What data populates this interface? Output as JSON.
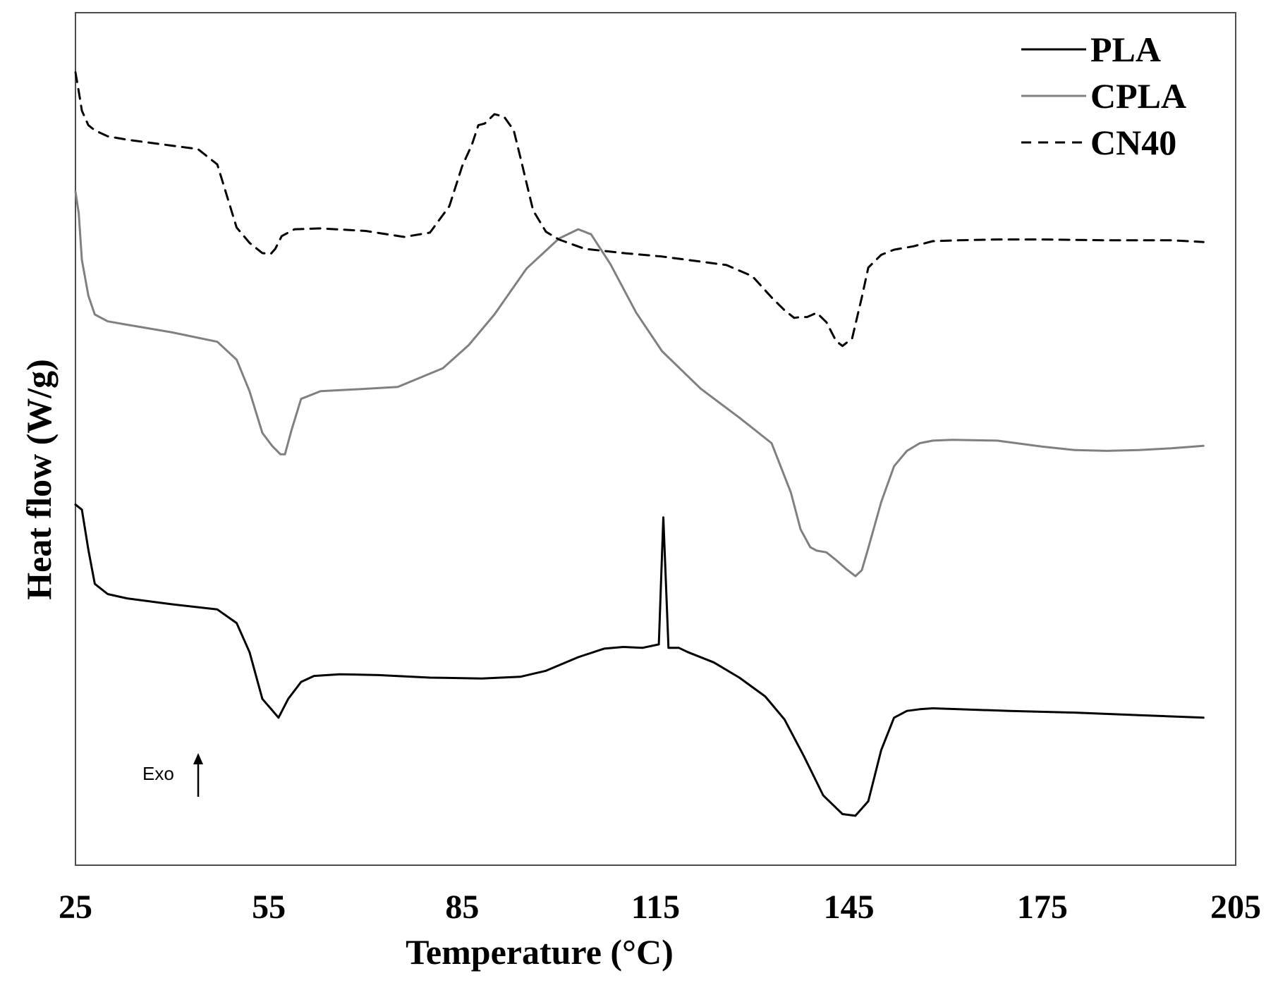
{
  "chart_data": {
    "type": "line",
    "title": "",
    "xlabel": "Temperature (°C)",
    "ylabel": "Heat flow (W/g)",
    "xlim": [
      25,
      205
    ],
    "xticks": [
      "25",
      "55",
      "85",
      "115",
      "145",
      "175",
      "205"
    ],
    "ylim": [
      0,
      100
    ],
    "y_ticks_shown": false,
    "grid": false,
    "legend": "top-right",
    "annotation": "Exo",
    "series": [
      {
        "name": "PLA",
        "color": "#000000",
        "dash": "solid",
        "x": [
          25,
          26,
          27,
          28,
          30,
          33,
          40,
          47,
          50,
          52,
          54,
          55.5,
          56.5,
          58,
          60,
          62,
          66,
          72,
          80,
          88,
          94,
          98,
          103,
          107,
          110,
          113,
          115.5,
          116.2,
          117,
          117.8,
          118.6,
          120,
          124,
          128,
          132,
          135,
          138,
          141,
          144,
          146,
          148,
          150,
          152,
          154,
          156,
          158,
          162,
          170,
          180,
          190,
          200
        ],
        "y": [
          42.3,
          41.7,
          37.0,
          33.0,
          31.8,
          31.3,
          30.6,
          30.0,
          28.4,
          25.0,
          19.5,
          18.2,
          17.3,
          19.5,
          21.5,
          22.2,
          22.4,
          22.3,
          22.0,
          21.9,
          22.1,
          22.8,
          24.4,
          25.4,
          25.6,
          25.5,
          25.9,
          40.8,
          25.5,
          25.5,
          25.5,
          25.0,
          23.8,
          22.0,
          19.8,
          17.1,
          12.8,
          8.2,
          6.0,
          5.8,
          7.5,
          13.5,
          17.3,
          18.1,
          18.3,
          18.4,
          18.3,
          18.1,
          17.9,
          17.6,
          17.3
        ]
      },
      {
        "name": "CPLA",
        "color": "#808080",
        "dash": "solid",
        "x": [
          25,
          25.5,
          26,
          27,
          28,
          30,
          33,
          40,
          47,
          50,
          52,
          54,
          55.5,
          56.8,
          57.5,
          58.5,
          60,
          63,
          68,
          75,
          82,
          86,
          90,
          95,
          100,
          103,
          105,
          108,
          112,
          116,
          122,
          128,
          133,
          136,
          137.5,
          139,
          140,
          141.5,
          143,
          144.5,
          146,
          147,
          148,
          150,
          152,
          154,
          156,
          158,
          161,
          168,
          175,
          180,
          185,
          190,
          195,
          200
        ],
        "y": [
          79.0,
          76.5,
          71.0,
          66.8,
          64.6,
          63.8,
          63.4,
          62.5,
          61.4,
          59.3,
          55.6,
          50.7,
          49.2,
          48.2,
          48.2,
          51.0,
          54.7,
          55.6,
          55.8,
          56.1,
          58.3,
          61.0,
          64.6,
          70.0,
          73.5,
          74.6,
          74.0,
          70.5,
          64.8,
          60.3,
          55.9,
          52.5,
          49.5,
          43.7,
          39.4,
          37.3,
          36.9,
          36.7,
          35.8,
          34.8,
          33.9,
          34.6,
          37.2,
          42.6,
          46.8,
          48.6,
          49.5,
          49.8,
          49.9,
          49.8,
          49.1,
          48.7,
          48.6,
          48.7,
          48.9,
          49.2
        ]
      },
      {
        "name": "CN40",
        "color": "#000000",
        "dash": "dashed",
        "x": [
          25,
          25.5,
          26,
          27,
          28,
          30,
          33,
          40,
          44,
          47,
          50,
          52,
          54,
          55.3,
          56,
          57,
          59,
          63,
          70,
          76,
          80,
          83,
          85,
          86.5,
          87.5,
          88.5,
          90,
          91.5,
          93,
          94,
          96,
          98,
          100,
          104,
          110,
          116,
          122,
          126,
          130,
          133,
          135,
          136.5,
          137.5,
          138.5,
          140,
          141.5,
          143,
          144,
          145.5,
          147,
          148,
          150,
          152,
          155,
          158,
          162,
          168,
          175,
          185,
          195,
          200
        ],
        "y": [
          93.0,
          90.8,
          88.5,
          86.8,
          86.2,
          85.5,
          85.1,
          84.4,
          84.0,
          82.2,
          74.8,
          73.0,
          71.8,
          71.7,
          72.3,
          73.8,
          74.6,
          74.7,
          74.4,
          73.7,
          74.2,
          77.3,
          82.0,
          84.5,
          86.8,
          87.0,
          88.1,
          87.8,
          86.2,
          83.1,
          76.8,
          74.3,
          73.4,
          72.3,
          71.8,
          71.4,
          70.8,
          70.4,
          69.1,
          66.6,
          65.1,
          64.2,
          64.3,
          64.3,
          64.8,
          63.7,
          61.5,
          60.9,
          61.8,
          66.6,
          70.1,
          71.6,
          72.2,
          72.6,
          73.2,
          73.3,
          73.4,
          73.4,
          73.3,
          73.3,
          73.1
        ]
      }
    ]
  }
}
